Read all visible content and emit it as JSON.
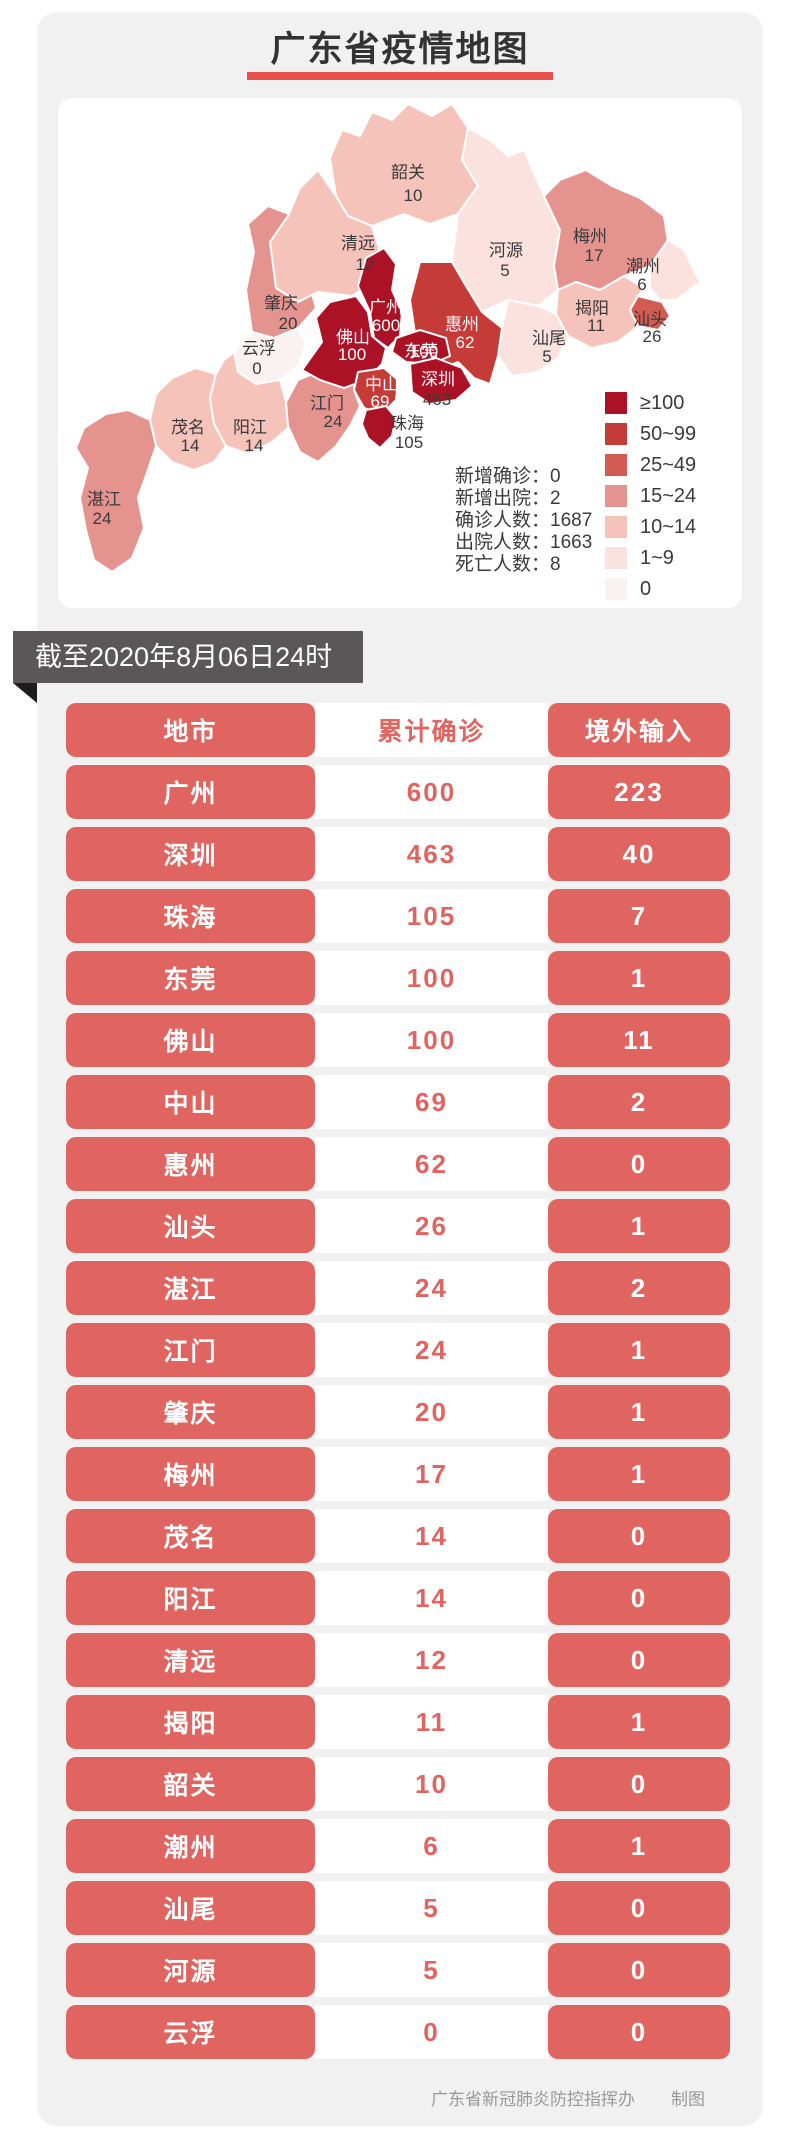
{
  "header": {
    "title": "广东省疫情地图"
  },
  "banner": {
    "text": "截至2020年8月06日24时"
  },
  "map": {
    "stats": {
      "separator": "：",
      "lines": [
        {
          "label": "新增确诊",
          "value": "0"
        },
        {
          "label": "新增出院",
          "value": "2"
        },
        {
          "label": "确诊人数",
          "value": "1687"
        },
        {
          "label": "出院人数",
          "value": "1663"
        },
        {
          "label": "死亡人数",
          "value": "8"
        }
      ]
    },
    "legend": {
      "items": [
        {
          "label": "≥100",
          "color": "#ab1226"
        },
        {
          "label": "50~99",
          "color": "#c43b38"
        },
        {
          "label": "25~49",
          "color": "#d25c53"
        },
        {
          "label": "15~24",
          "color": "#e4938e"
        },
        {
          "label": "10~14",
          "color": "#f6c3ba"
        },
        {
          "label": "1~9",
          "color": "#fbe2de"
        },
        {
          "label": "0",
          "color": "#f9f2f1"
        }
      ]
    },
    "regions": [
      {
        "id": "shaoguan",
        "name": "韶关",
        "value": "10",
        "color": "#f6c3ba"
      },
      {
        "id": "zhaoqing",
        "name": "肇庆",
        "value": "20",
        "color": "#e4938e"
      },
      {
        "id": "qingyuan",
        "name": "清远",
        "value": "12",
        "color": "#f6c3ba"
      },
      {
        "id": "heyuan",
        "name": "河源",
        "value": "5",
        "color": "#fbe2de"
      },
      {
        "id": "meizhou",
        "name": "梅州",
        "value": "17",
        "color": "#e4938e"
      },
      {
        "id": "yunfu",
        "name": "云浮",
        "value": "0",
        "color": "#f9f2f1"
      },
      {
        "id": "maoming",
        "name": "茂名",
        "value": "14",
        "color": "#f6c3ba"
      },
      {
        "id": "yangjiang",
        "name": "阳江",
        "value": "14",
        "color": "#f6c3ba"
      },
      {
        "id": "zhanjiang",
        "name": "湛江",
        "value": "24",
        "color": "#e4938e"
      },
      {
        "id": "jiangmen",
        "name": "江门",
        "value": "24",
        "color": "#e4938e"
      },
      {
        "id": "chaozhou",
        "name": "潮州",
        "value": "6",
        "color": "#fbe2de"
      },
      {
        "id": "jieyang",
        "name": "揭阳",
        "value": "11",
        "color": "#f6c3ba"
      },
      {
        "id": "shanwei",
        "name": "汕尾",
        "value": "5",
        "color": "#fbe2de"
      },
      {
        "id": "shantou",
        "name": "汕头",
        "value": "26",
        "color": "#d25c53"
      },
      {
        "id": "huizhou",
        "name": "惠州",
        "value": "62",
        "color": "#c43b38"
      },
      {
        "id": "guangzhou",
        "name": "广州",
        "value": "600",
        "color": "#ab1226"
      },
      {
        "id": "foshan",
        "name": "佛山",
        "value": "100",
        "color": "#ab1226"
      },
      {
        "id": "dongguan",
        "name": "东莞",
        "value": "100",
        "color": "#ab1226"
      },
      {
        "id": "zhongshan",
        "name": "中山",
        "value": "69",
        "color": "#c43b38"
      },
      {
        "id": "shenzhen",
        "name": "深圳",
        "value": "463",
        "color": "#ab1226"
      },
      {
        "id": "zhuhai",
        "name": "珠海",
        "value": "105",
        "color": "#ab1226"
      }
    ]
  },
  "table": {
    "headers": {
      "city": "地市",
      "confirmed": "累计确诊",
      "imported": "境外输入"
    },
    "rows": [
      {
        "city": "广州",
        "confirmed": "600",
        "imported": "223"
      },
      {
        "city": "深圳",
        "confirmed": "463",
        "imported": "40"
      },
      {
        "city": "珠海",
        "confirmed": "105",
        "imported": "7"
      },
      {
        "city": "东莞",
        "confirmed": "100",
        "imported": "1"
      },
      {
        "city": "佛山",
        "confirmed": "100",
        "imported": "11"
      },
      {
        "city": "中山",
        "confirmed": "69",
        "imported": "2"
      },
      {
        "city": "惠州",
        "confirmed": "62",
        "imported": "0"
      },
      {
        "city": "汕头",
        "confirmed": "26",
        "imported": "1"
      },
      {
        "city": "湛江",
        "confirmed": "24",
        "imported": "2"
      },
      {
        "city": "江门",
        "confirmed": "24",
        "imported": "1"
      },
      {
        "city": "肇庆",
        "confirmed": "20",
        "imported": "1"
      },
      {
        "city": "梅州",
        "confirmed": "17",
        "imported": "1"
      },
      {
        "city": "茂名",
        "confirmed": "14",
        "imported": "0"
      },
      {
        "city": "阳江",
        "confirmed": "14",
        "imported": "0"
      },
      {
        "city": "清远",
        "confirmed": "12",
        "imported": "0"
      },
      {
        "city": "揭阳",
        "confirmed": "11",
        "imported": "1"
      },
      {
        "city": "韶关",
        "confirmed": "10",
        "imported": "0"
      },
      {
        "city": "潮州",
        "confirmed": "6",
        "imported": "1"
      },
      {
        "city": "汕尾",
        "confirmed": "5",
        "imported": "0"
      },
      {
        "city": "河源",
        "confirmed": "5",
        "imported": "0"
      },
      {
        "city": "云浮",
        "confirmed": "0",
        "imported": "0"
      }
    ]
  },
  "footer": {
    "credit": "广东省新冠肺炎防控指挥办",
    "suffix": "制图"
  }
}
